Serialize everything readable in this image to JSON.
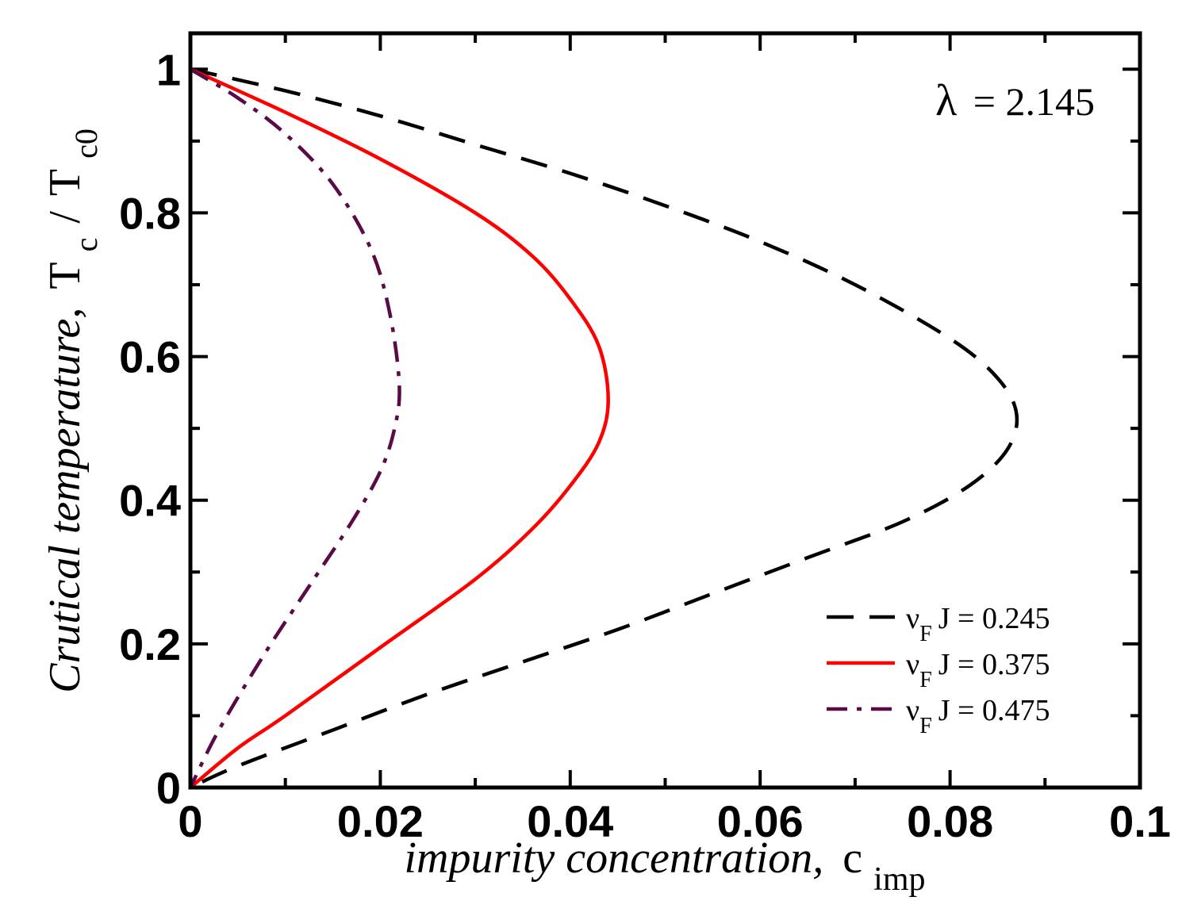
{
  "chart_data": {
    "type": "line",
    "title": "",
    "xlabel": {
      "italic": "impurity concentration,",
      "main": "c",
      "sub": "imp"
    },
    "ylabel": {
      "italic": "Crutical temperature,",
      "t1": "T",
      "s1": "c",
      "slash": "/",
      "t2": "T",
      "s2": "c0"
    },
    "xlim": [
      0,
      0.1
    ],
    "ylim": [
      0,
      1.05
    ],
    "xticks": [
      0,
      0.02,
      0.04,
      0.06,
      0.08,
      0.1
    ],
    "xtick_labels": [
      "0",
      "0.02",
      "0.04",
      "0.06",
      "0.08",
      "0.1"
    ],
    "yticks": [
      0,
      0.2,
      0.4,
      0.6,
      0.8,
      1
    ],
    "ytick_labels": [
      "0",
      "0.2",
      "0.4",
      "0.6",
      "0.8",
      "1"
    ],
    "grid": false,
    "legend_position": "bottom-right",
    "annotation": {
      "symbol": "λ",
      "text": "= 2.145"
    },
    "series": [
      {
        "name": "J = 0.245",
        "name_prefix": "ν",
        "name_sub": "F",
        "color": "#000000",
        "dash": "dashed",
        "points": [
          [
            0,
            1.0
          ],
          [
            0.01,
            0.97
          ],
          [
            0.02,
            0.935
          ],
          [
            0.03,
            0.895
          ],
          [
            0.04,
            0.855
          ],
          [
            0.05,
            0.81
          ],
          [
            0.06,
            0.76
          ],
          [
            0.07,
            0.7
          ],
          [
            0.08,
            0.625
          ],
          [
            0.085,
            0.57
          ],
          [
            0.087,
            0.52
          ],
          [
            0.086,
            0.47
          ],
          [
            0.082,
            0.42
          ],
          [
            0.075,
            0.37
          ],
          [
            0.065,
            0.32
          ],
          [
            0.055,
            0.27
          ],
          [
            0.045,
            0.22
          ],
          [
            0.035,
            0.175
          ],
          [
            0.025,
            0.13
          ],
          [
            0.015,
            0.08
          ],
          [
            0.005,
            0.03
          ],
          [
            0.0,
            0.0
          ]
        ]
      },
      {
        "name": "J = 0.375",
        "name_prefix": "ν",
        "name_sub": "F",
        "color": "#ff0000",
        "dash": "solid",
        "points": [
          [
            0,
            1.0
          ],
          [
            0.01,
            0.94
          ],
          [
            0.02,
            0.875
          ],
          [
            0.03,
            0.8
          ],
          [
            0.036,
            0.74
          ],
          [
            0.04,
            0.68
          ],
          [
            0.043,
            0.615
          ],
          [
            0.044,
            0.54
          ],
          [
            0.043,
            0.48
          ],
          [
            0.04,
            0.42
          ],
          [
            0.036,
            0.36
          ],
          [
            0.03,
            0.29
          ],
          [
            0.02,
            0.195
          ],
          [
            0.01,
            0.1
          ],
          [
            0.005,
            0.055
          ],
          [
            0.0,
            0.0
          ]
        ]
      },
      {
        "name": "J = 0.475",
        "name_prefix": "ν",
        "name_sub": "F",
        "color": "#5a0a47",
        "dash": "dashdot",
        "points": [
          [
            0,
            1.0
          ],
          [
            0.005,
            0.96
          ],
          [
            0.01,
            0.91
          ],
          [
            0.015,
            0.84
          ],
          [
            0.019,
            0.75
          ],
          [
            0.021,
            0.66
          ],
          [
            0.022,
            0.56
          ],
          [
            0.0215,
            0.5
          ],
          [
            0.02,
            0.44
          ],
          [
            0.017,
            0.37
          ],
          [
            0.013,
            0.29
          ],
          [
            0.008,
            0.19
          ],
          [
            0.003,
            0.08
          ],
          [
            0.0,
            0.0
          ]
        ]
      }
    ]
  }
}
